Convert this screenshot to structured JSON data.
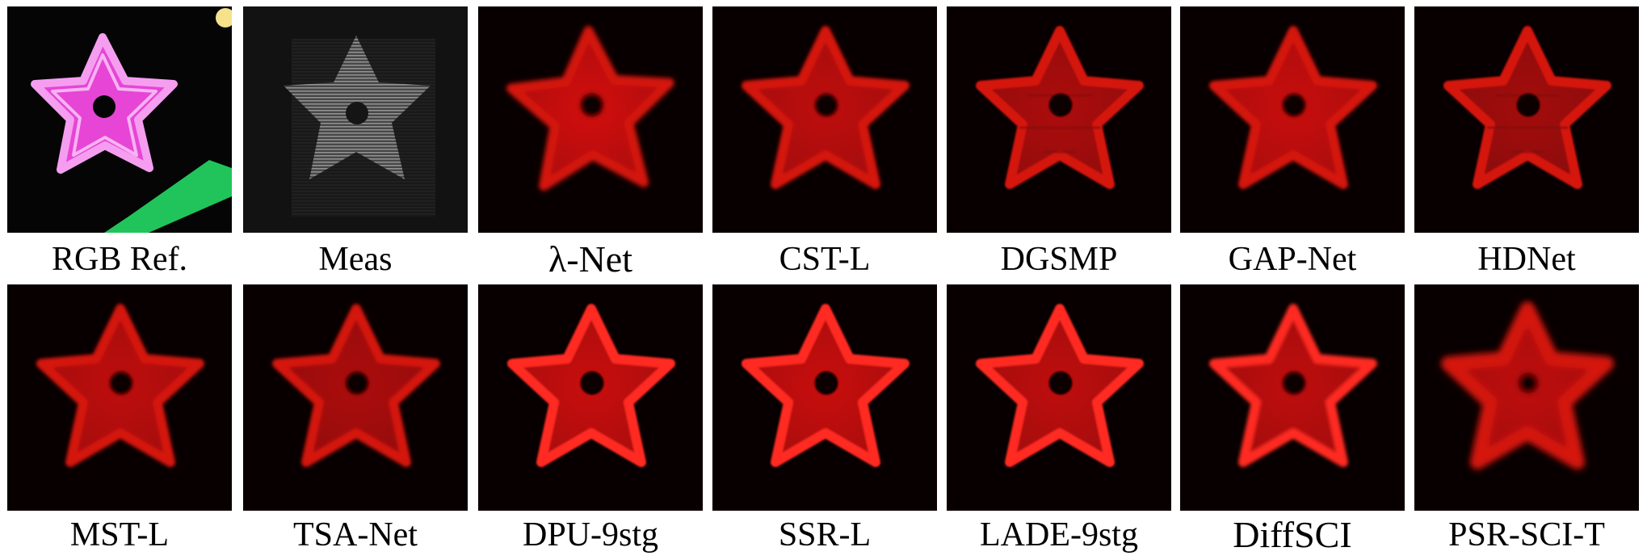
{
  "figure": {
    "rows": [
      {
        "panels": [
          {
            "id": "rgb-ref",
            "label": "RGB Ref.",
            "style": "rgb"
          },
          {
            "id": "meas",
            "label": "Meas",
            "style": "meas"
          },
          {
            "id": "lambda-net",
            "label": "λ-Net",
            "style": "red"
          },
          {
            "id": "cst-l",
            "label": "CST-L",
            "style": "red"
          },
          {
            "id": "dgsmp",
            "label": "DGSMP",
            "style": "red"
          },
          {
            "id": "gap-net",
            "label": "GAP-Net",
            "style": "red"
          },
          {
            "id": "hdnet",
            "label": "HDNet",
            "style": "red"
          }
        ]
      },
      {
        "panels": [
          {
            "id": "mst-l",
            "label": "MST-L",
            "style": "red"
          },
          {
            "id": "tsa-net",
            "label": "TSA-Net",
            "style": "red"
          },
          {
            "id": "dpu-9stg",
            "label": "DPU-9stg",
            "style": "red"
          },
          {
            "id": "ssr-l",
            "label": "SSR-L",
            "style": "red"
          },
          {
            "id": "lade-9stg",
            "label": "LADE-9stg",
            "style": "red"
          },
          {
            "id": "diffsci",
            "label": "DiffSCI",
            "style": "red"
          },
          {
            "id": "psr-sci-t",
            "label": "PSR-SCI-T",
            "style": "red"
          }
        ]
      }
    ],
    "colors": {
      "star_pink": "#e645d6",
      "star_pink_edge": "#f59ef0",
      "star_red": "#d4120f",
      "meas_gray": "#8a8a8a",
      "green_stem": "#21c45a"
    }
  }
}
